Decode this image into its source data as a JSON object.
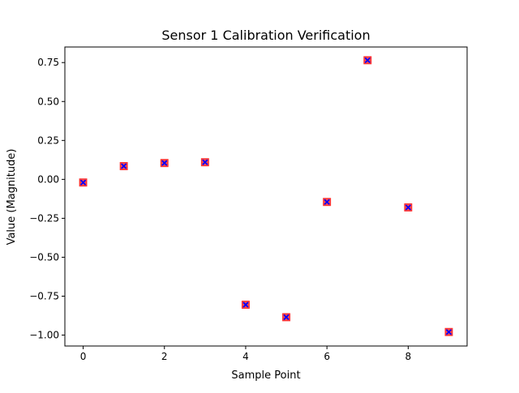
{
  "chart_data": {
    "type": "scatter",
    "title": "Sensor 1 Calibration Verification",
    "xlabel": "Sample Point",
    "ylabel": "Value (Magnitude)",
    "xlim": [
      -0.45,
      9.45
    ],
    "ylim": [
      -1.07,
      0.85
    ],
    "xticks": [
      0,
      2,
      4,
      6,
      8
    ],
    "xtick_labels": [
      "0",
      "2",
      "4",
      "6",
      "8"
    ],
    "yticks": [
      0.75,
      0.5,
      0.25,
      0.0,
      -0.25,
      -0.5,
      -0.75,
      -1.0
    ],
    "ytick_labels": [
      "0.75",
      "0.50",
      "0.25",
      "0.00",
      "−0.25",
      "−0.50",
      "−0.75",
      "−1.00"
    ],
    "grid": false,
    "legend": false,
    "series": [
      {
        "x": [
          0,
          1,
          2,
          3,
          4,
          5,
          6,
          7,
          8,
          9
        ],
        "y": [
          -0.02,
          0.085,
          0.105,
          0.11,
          -0.805,
          -0.885,
          -0.145,
          0.765,
          -0.18,
          -0.98
        ],
        "marker_square_color": "#ff0000",
        "marker_x_color": "#0000ff",
        "marker_square_opacity": 0.7
      }
    ]
  }
}
